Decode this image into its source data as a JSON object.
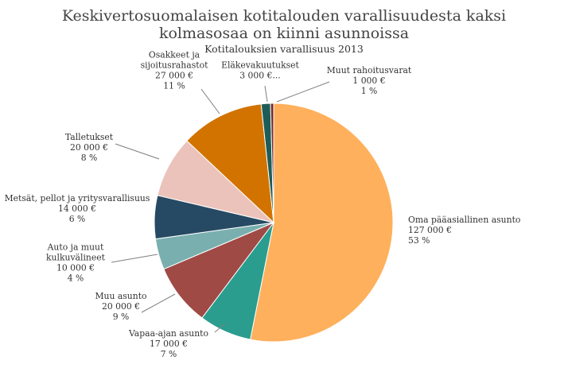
{
  "chart_data": {
    "type": "pie",
    "title_lines": [
      "Keskivertosuomalaisen kotitalouden varallisuudesta kaksi",
      "kolmasosaa on kiinni asunnoissa"
    ],
    "subtitle": "Kotitalouksien varallisuus 2013",
    "slices": [
      {
        "name": "Oma pääasiallinen asunto",
        "value": 127000,
        "value_label": "127 000 €",
        "percent_label": "53 %",
        "color": "#FFB05C"
      },
      {
        "name": "Vapaa-ajan asunto",
        "value": 17000,
        "value_label": "17 000 €",
        "percent_label": "7 %",
        "color": "#2A9D8F"
      },
      {
        "name": "Muu asunto",
        "value": 20000,
        "value_label": "20 000 €",
        "percent_label": "9 %",
        "color": "#A04A45"
      },
      {
        "name": "Auto ja muut kulkuvälineet",
        "name_lines": [
          "Auto ja muut",
          "kulkuvälineet"
        ],
        "value": 10000,
        "value_label": "10 000 €",
        "percent_label": "4 %",
        "color": "#7AAFAF"
      },
      {
        "name": "Metsät, pellot ja yritysvarallisuus",
        "value": 14000,
        "value_label": "14 000 €",
        "percent_label": "6 %",
        "color": "#264A63"
      },
      {
        "name": "Talletukset",
        "value": 20000,
        "value_label": "20 000 €",
        "percent_label": "8 %",
        "color": "#EBC3BB"
      },
      {
        "name": "Osakkeet ja sijoitusrahastot",
        "name_lines": [
          "Osakkeet ja",
          "sijoitusrahastot"
        ],
        "value": 27000,
        "value_label": "27 000 €",
        "percent_label": "11 %",
        "color": "#D27300"
      },
      {
        "name": "Eläkevakuutukset",
        "value": 3000,
        "value_label": "3 000 €...",
        "percent_label": "",
        "color": "#1E5C58"
      },
      {
        "name": "Muut rahoitusvarat",
        "value": 1000,
        "value_label": "1 000 €",
        "percent_label": "1 %",
        "color": "#7A2727"
      }
    ]
  }
}
